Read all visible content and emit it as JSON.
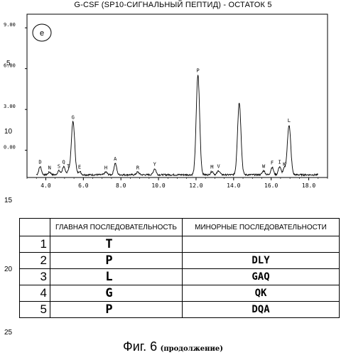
{
  "title": "G-CSF (SP10-СИГНАЛЬНЫЙ ПЕПТИД) - ОСТАТОК 5",
  "panel_label": "e",
  "line_numbers": [
    "5",
    "10",
    "15",
    "20",
    "25"
  ],
  "chart_data": {
    "type": "line",
    "title": "G-CSF (SP10-СИГНАЛЬНЫЙ ПЕПТИД) - ОСТАТОК 5",
    "xlabel": "",
    "ylabel": "",
    "xlim": [
      3.0,
      19.0
    ],
    "ylim": [
      -2.0,
      10.0
    ],
    "x_ticks": [
      "4.0",
      "6.0",
      "8.0",
      "10.0",
      "12.0",
      "14.0",
      "16.0",
      "18.0"
    ],
    "y_ticks": [
      "0.00",
      "3.00",
      "6.00",
      "9.00"
    ],
    "baseline": -1.8,
    "peaks": [
      {
        "label": "D",
        "x": 3.7,
        "height": 0.6
      },
      {
        "label": "N",
        "x": 4.2,
        "height": 0.2
      },
      {
        "label": "S",
        "x": 4.7,
        "height": 0.3
      },
      {
        "label": "Q",
        "x": 4.95,
        "height": 0.6
      },
      {
        "label": "T",
        "x": 5.2,
        "height": 0.3
      },
      {
        "label": "G",
        "x": 5.45,
        "height": 3.9
      },
      {
        "label": "E",
        "x": 5.8,
        "height": 0.25
      },
      {
        "label": "H",
        "x": 7.2,
        "height": 0.2
      },
      {
        "label": "A",
        "x": 7.7,
        "height": 0.85
      },
      {
        "label": "R",
        "x": 8.9,
        "height": 0.2
      },
      {
        "label": "Y",
        "x": 9.8,
        "height": 0.45
      },
      {
        "label": "P",
        "x": 12.1,
        "height": 7.35
      },
      {
        "label": "M",
        "x": 12.85,
        "height": 0.25
      },
      {
        "label": "V",
        "x": 13.2,
        "height": 0.3
      },
      {
        "label": "",
        "x": 14.3,
        "height": 5.3
      },
      {
        "label": "W",
        "x": 15.6,
        "height": 0.3
      },
      {
        "label": "F",
        "x": 16.05,
        "height": 0.55
      },
      {
        "label": "I",
        "x": 16.45,
        "height": 0.6
      },
      {
        "label": "K",
        "x": 16.7,
        "height": 0.45
      },
      {
        "label": "L",
        "x": 16.95,
        "height": 3.65
      }
    ]
  },
  "table": {
    "headers": [
      "",
      "ГЛАВНАЯ ПОСЛЕДОВАТЕЛЬНОСТЬ",
      "МИНОРНЫЕ ПОСЛЕДОВАТЕЛЬНОСТИ"
    ],
    "rows": [
      {
        "num": "1",
        "main": "T",
        "minor": ""
      },
      {
        "num": "2",
        "main": "P",
        "minor": "DLY"
      },
      {
        "num": "3",
        "main": "L",
        "minor": "GAQ"
      },
      {
        "num": "4",
        "main": "G",
        "minor": "QK"
      },
      {
        "num": "5",
        "main": "P",
        "minor": "DQA"
      }
    ]
  },
  "caption": {
    "figure": "Фиг. 6",
    "continued": "(продолжение)"
  }
}
